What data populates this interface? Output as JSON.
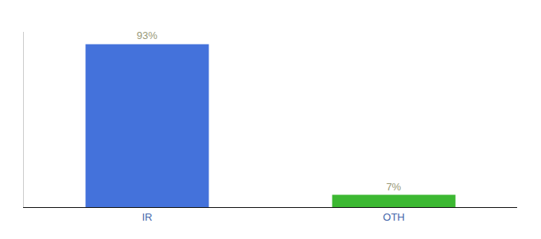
{
  "chart_data": {
    "type": "bar",
    "categories": [
      "IR",
      "OTH"
    ],
    "values": [
      93,
      7
    ],
    "value_labels": [
      "93%",
      "7%"
    ],
    "data_labels": true,
    "colors": [
      "#4472db",
      "#3cb832"
    ],
    "ylim": [
      0,
      100
    ],
    "grid": false,
    "tick_labels": "x"
  }
}
